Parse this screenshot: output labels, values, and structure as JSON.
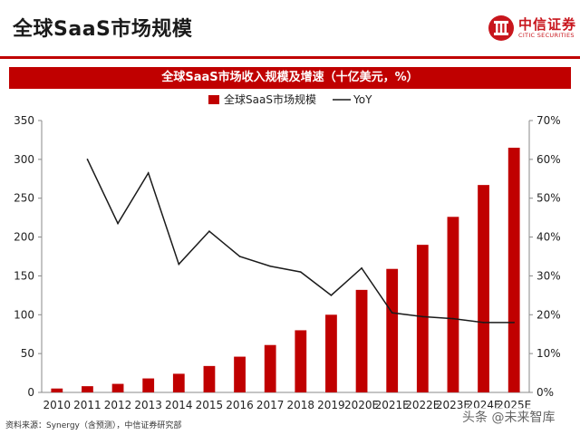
{
  "header": {
    "title": "全球SaaS市场规模",
    "logo": {
      "cn": "中信证券",
      "en": "CITIC SECURITIES"
    }
  },
  "banner": {
    "title": "全球SaaS市场收入规模及增速（十亿美元，%）"
  },
  "chart_data": {
    "type": "bar",
    "title": "全球SaaS市场收入规模及增速（十亿美元，%）",
    "categories": [
      "2010",
      "2011",
      "2012",
      "2013",
      "2014",
      "2015",
      "2016",
      "2017",
      "2018",
      "2019",
      "2020E",
      "2021E",
      "2022E",
      "2023E",
      "2024E",
      "2025E"
    ],
    "series": [
      {
        "name": "全球SaaS市场规模",
        "type": "bar",
        "axis": "left",
        "color": "#c00000",
        "values": [
          5,
          8,
          11,
          18,
          24,
          34,
          46,
          61,
          80,
          100,
          132,
          159,
          190,
          226,
          267,
          315
        ]
      },
      {
        "name": "YoY",
        "type": "line",
        "axis": "right",
        "color": "#1a1a1a",
        "values": [
          null,
          60,
          43.5,
          56.5,
          33,
          41.5,
          35,
          32.5,
          31,
          25,
          32,
          20.5,
          19.5,
          19,
          18,
          18
        ]
      }
    ],
    "y_left": {
      "min": 0,
      "max": 350,
      "ticks": [
        "0",
        "50",
        "100",
        "150",
        "200",
        "250",
        "300",
        "350"
      ]
    },
    "y_right": {
      "min": 0,
      "max": 70,
      "ticks": [
        "0%",
        "10%",
        "20%",
        "30%",
        "40%",
        "50%",
        "60%",
        "70%"
      ]
    },
    "grid": false,
    "legend_position": "top-center"
  },
  "footer": {
    "source": "资料来源：Synergy（含预测），中信证券研究部",
    "watermark": "头条 @未来智库"
  },
  "colors": {
    "accent": "#c00000",
    "line": "#1a1a1a"
  }
}
